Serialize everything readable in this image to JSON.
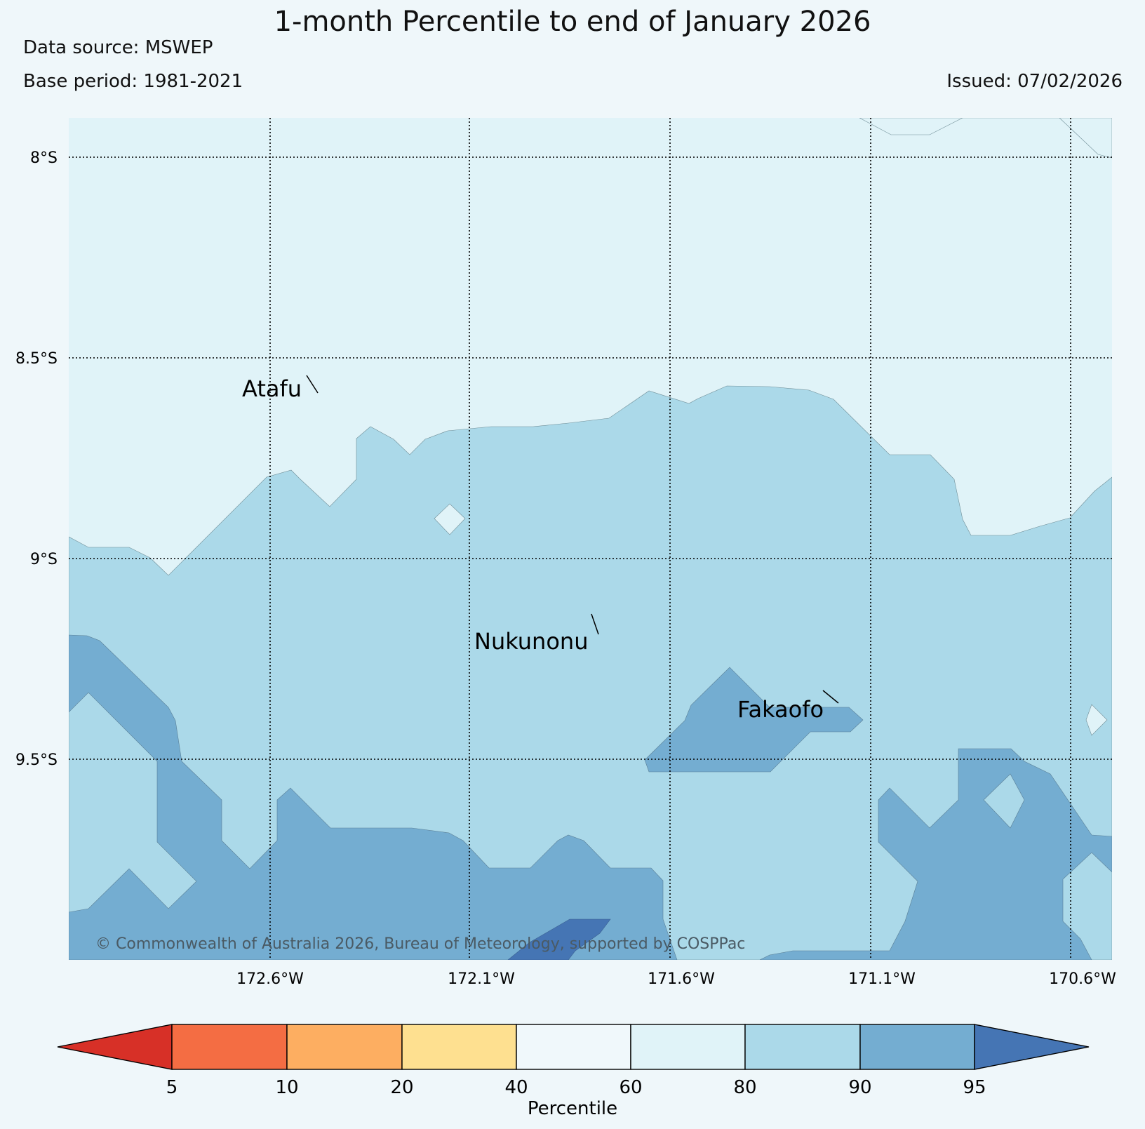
{
  "title": "1-month Percentile to end of January 2026",
  "data_source": "Data source: MSWEP",
  "base_period": "Base period: 1981-2021",
  "issued": "Issued: 07/02/2026",
  "copyright": "© Commonwealth of Australia 2026, Bureau of Meteorology, supported by COSPPac",
  "lat_labels": [
    "8°S",
    "8.5°S",
    "9°S",
    "9.5°S"
  ],
  "lon_labels": [
    "172.6°W",
    "172.1°W",
    "171.6°W",
    "171.1°W",
    "170.6°W"
  ],
  "places": [
    "Atafu",
    "Nukunonu",
    "Fakaofo"
  ],
  "colorbar": {
    "label": "Percentile",
    "ticks": [
      "5",
      "10",
      "20",
      "40",
      "60",
      "80",
      "90",
      "95"
    ],
    "colors": [
      "#d73027",
      "#f46d43",
      "#fdae61",
      "#fee090",
      "#f0f8fb",
      "#e0f3f8",
      "#abd9e9",
      "#74add1",
      "#4575b4"
    ]
  }
}
